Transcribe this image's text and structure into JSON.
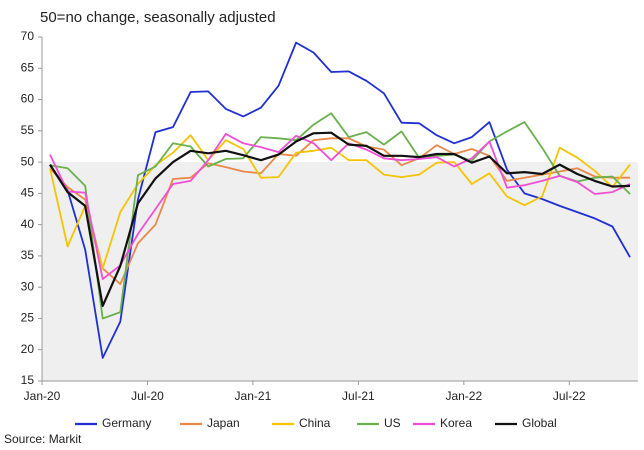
{
  "chart_data": {
    "type": "line",
    "title": "50=no change, seasonally adjusted",
    "source": "Source: Markit",
    "categories": [
      "Jan-20",
      null,
      null,
      null,
      null,
      null,
      "Jul-20",
      null,
      null,
      null,
      null,
      null,
      "Jan-21",
      null,
      null,
      null,
      null,
      null,
      "Jul-21",
      null,
      null,
      null,
      null,
      null,
      "Jan-22",
      null,
      null,
      null,
      null,
      null,
      "Jul-22",
      null,
      null,
      null
    ],
    "ylim": [
      15,
      70
    ],
    "yticks": [
      15,
      20,
      25,
      30,
      35,
      40,
      45,
      50,
      55,
      60,
      65,
      70
    ],
    "shade_below": 50,
    "series": [
      {
        "name": "Germany",
        "color": "#1f2fd1",
        "values": [
          49.5,
          45.5,
          36,
          18.7,
          24.5,
          44,
          54.8,
          55.6,
          61.2,
          61.3,
          58.5,
          57.3,
          58.7,
          62.2,
          69.1,
          67.5,
          64.4,
          64.5,
          63.0,
          61.0,
          56.3,
          56.2,
          54.3,
          53.0,
          54.0,
          56.4,
          48.8,
          45.0,
          44.1,
          43.0,
          42.0,
          41.0,
          39.7,
          34.8
        ]
      },
      {
        "name": "Japan",
        "color": "#e8894a",
        "values": [
          49.0,
          46,
          44,
          33,
          30.5,
          37,
          40,
          47.3,
          47.5,
          49.8,
          49.2,
          48.5,
          48.2,
          51.3,
          51.0,
          53.5,
          53.8,
          53.8,
          52.5,
          52.0,
          49.5,
          50.6,
          52.7,
          51.3,
          52.1,
          51.0,
          47.0,
          47.5,
          48.0,
          48.5,
          49.0,
          47.7,
          47.5,
          47.5
        ]
      },
      {
        "name": "China",
        "color": "#f5c400",
        "values": [
          49.0,
          36.5,
          43,
          33,
          42,
          46.5,
          49.5,
          51.5,
          54.3,
          50.3,
          53.5,
          52.1,
          47.5,
          47.6,
          51.5,
          51.8,
          52.3,
          50.3,
          50.3,
          48.0,
          47.6,
          48.0,
          49.9,
          50.0,
          46.5,
          48.2,
          44.5,
          43.1,
          44.5,
          52.3,
          50.7,
          48.6,
          46.0,
          49.6
        ]
      },
      {
        "name": "US",
        "color": "#6ab04c",
        "values": [
          49.5,
          49.0,
          46.2,
          25.0,
          26.0,
          47.9,
          49.3,
          53.0,
          52.5,
          49.3,
          50.5,
          50.6,
          54.0,
          53.8,
          53.5,
          56.0,
          57.8,
          54.0,
          54.8,
          52.8,
          54.9,
          50.7,
          51.0,
          51.2,
          50.2,
          53.3,
          54.9,
          56.4,
          52.3,
          47.8,
          46.9,
          47.5,
          47.7,
          44.9
        ]
      },
      {
        "name": "Korea",
        "color": "#f04fd5",
        "values": [
          51.2,
          45.3,
          45.1,
          31.3,
          33.5,
          38.5,
          42.5,
          46.5,
          47.0,
          50.3,
          54.5,
          53.0,
          52.4,
          51.6,
          54.2,
          53.0,
          50.3,
          53.0,
          52.0,
          50.6,
          50.3,
          50.5,
          50.8,
          49.3,
          50.6,
          53.3,
          45.9,
          46.3,
          47.0,
          47.8,
          46.8,
          44.9,
          45.2,
          46.5
        ]
      },
      {
        "name": "Global",
        "color": "#111111",
        "values": [
          49.6,
          45.2,
          43.0,
          27.0,
          33.4,
          43.4,
          47.4,
          50.0,
          51.8,
          51.4,
          51.8,
          51.1,
          50.3,
          51.2,
          53.3,
          54.6,
          54.7,
          52.8,
          52.6,
          51.0,
          51.0,
          50.8,
          51.3,
          51.3,
          49.9,
          50.9,
          48.2,
          48.4,
          48.1,
          49.6,
          48.1,
          47.0,
          46.1,
          46.2
        ]
      }
    ]
  }
}
